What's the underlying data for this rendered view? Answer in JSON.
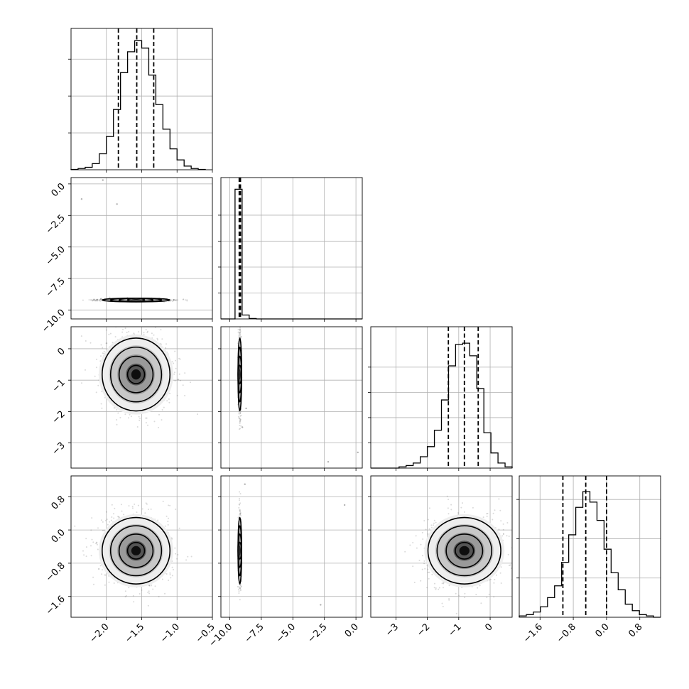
{
  "chart_data": {
    "type": "corner",
    "grid": true,
    "dimensions": [
      {
        "range": [
          -2.5,
          -0.5
        ],
        "ticks": [
          -2.0,
          -1.5,
          -1.0,
          -0.5
        ],
        "tick_labels": [
          "−2.0",
          "−1.5",
          "−1.0",
          "−0.5"
        ],
        "quantiles": [
          -1.83,
          -1.57,
          -1.33
        ],
        "hist_bins": [
          -2.5,
          -2.4,
          -2.3,
          -2.2,
          -2.1,
          -2.0,
          -1.9,
          -1.8,
          -1.7,
          -1.6,
          -1.5,
          -1.4,
          -1.3,
          -1.2,
          -1.1,
          -1.0,
          -0.9,
          -0.8,
          -0.7,
          -0.6
        ],
        "hist_counts": [
          0.3,
          1,
          2,
          5,
          13,
          27,
          49,
          79,
          96,
          105,
          99,
          77,
          53,
          33,
          17,
          8,
          3,
          1,
          0.3
        ],
        "hist_ymax": 115,
        "marginal_ticks": [
          30,
          60,
          90
        ]
      },
      {
        "range": [
          -10.7,
          0.5
        ],
        "ticks": [
          -10.0,
          -7.5,
          -5.0,
          -2.5,
          0.0
        ],
        "tick_labels": [
          "−10.0",
          "−7.5",
          "−5.0",
          "−2.5",
          "0.0"
        ],
        "quantiles": [
          -9.25,
          -9.2,
          -9.15
        ],
        "hist_bins": [
          -10.7,
          -10.14,
          -9.58,
          -9.02,
          -8.46,
          -7.9,
          -7.34,
          -6.78,
          -6.22,
          -5.66,
          -5.1,
          -4.54,
          -3.98,
          -3.42,
          -2.86,
          -2.3,
          -1.74,
          -1.18,
          -0.62,
          -0.06,
          0.5
        ],
        "hist_counts": [
          0,
          0,
          1000,
          30,
          3,
          0,
          0,
          0,
          0,
          0,
          0,
          0,
          0,
          0,
          0,
          0,
          0,
          0,
          0,
          0
        ],
        "hist_ymax": 1090,
        "marginal_ticks": [
          200,
          400,
          600,
          800
        ]
      },
      {
        "range": [
          -3.8,
          0.7
        ],
        "ticks": [
          -3,
          -2,
          -1,
          0
        ],
        "tick_labels": [
          "−3",
          "−2",
          "−1",
          "0"
        ],
        "quantiles": [
          -1.33,
          -0.82,
          -0.38
        ],
        "hist_bins": [
          -3.8,
          -3.575,
          -3.35,
          -3.125,
          -2.9,
          -2.675,
          -2.45,
          -2.225,
          -2.0,
          -1.775,
          -1.55,
          -1.325,
          -1.1,
          -0.875,
          -0.65,
          -0.425,
          -0.2,
          0.025,
          0.25,
          0.475,
          0.7
        ],
        "hist_counts": [
          0,
          0,
          0,
          0,
          1,
          2,
          4,
          9,
          17,
          30,
          54,
          81,
          98,
          99,
          89,
          63,
          28,
          12,
          4,
          1
        ],
        "hist_ymax": 112,
        "marginal_ticks": [
          20,
          40,
          60,
          80
        ]
      },
      {
        "range": [
          -2.1,
          1.3
        ],
        "ticks": [
          -1.6,
          -0.8,
          0.0,
          0.8
        ],
        "tick_labels": [
          "−1.6",
          "−0.8",
          "0.0",
          "0.8"
        ],
        "quantiles": [
          -1.05,
          -0.5,
          0.0
        ],
        "hist_bins": [
          -2.1,
          -1.93,
          -1.76,
          -1.59,
          -1.42,
          -1.25,
          -1.08,
          -0.91,
          -0.74,
          -0.57,
          -0.4,
          -0.23,
          -0.06,
          0.11,
          0.28,
          0.45,
          0.62,
          0.79,
          0.96,
          1.13,
          1.3
        ],
        "hist_counts": [
          1,
          2,
          4,
          8,
          15,
          24,
          42,
          63,
          84,
          96,
          88,
          74,
          52,
          34,
          21,
          10,
          5,
          2,
          1,
          0
        ],
        "hist_ymax": 108,
        "marginal_ticks": [
          30,
          60,
          90
        ]
      }
    ],
    "pairs": [
      {
        "row": 1,
        "col": 0,
        "mean": [
          -1.58,
          -9.2
        ],
        "sd": [
          0.24,
          0.05
        ],
        "outliers": [
          [
            -2.35,
            -1.2
          ],
          [
            -2.05,
            0.3
          ],
          [
            -1.85,
            -1.6
          ]
        ]
      },
      {
        "row": 2,
        "col": 0,
        "mean": [
          -1.58,
          -0.82
        ],
        "sd": [
          0.24,
          0.58
        ],
        "outliers": []
      },
      {
        "row": 2,
        "col": 1,
        "mean": [
          -9.2,
          -0.82
        ],
        "sd": [
          0.05,
          0.58
        ],
        "outliers": [
          [
            -9.0,
            -2.5
          ],
          [
            -2.2,
            -3.6
          ],
          [
            0.15,
            -3.3
          ],
          [
            -8.7,
            -1.9
          ]
        ]
      },
      {
        "row": 3,
        "col": 0,
        "mean": [
          -1.58,
          -0.5
        ],
        "sd": [
          0.24,
          0.4
        ],
        "outliers": []
      },
      {
        "row": 3,
        "col": 1,
        "mean": [
          -9.2,
          -0.5
        ],
        "sd": [
          0.05,
          0.4
        ],
        "outliers": [
          [
            -2.8,
            -1.8
          ],
          [
            -0.9,
            0.6
          ],
          [
            -8.8,
            1.1
          ]
        ]
      },
      {
        "row": 3,
        "col": 2,
        "mean": [
          -0.82,
          -0.5
        ],
        "sd": [
          0.58,
          0.4
        ],
        "outliers": []
      }
    ]
  }
}
